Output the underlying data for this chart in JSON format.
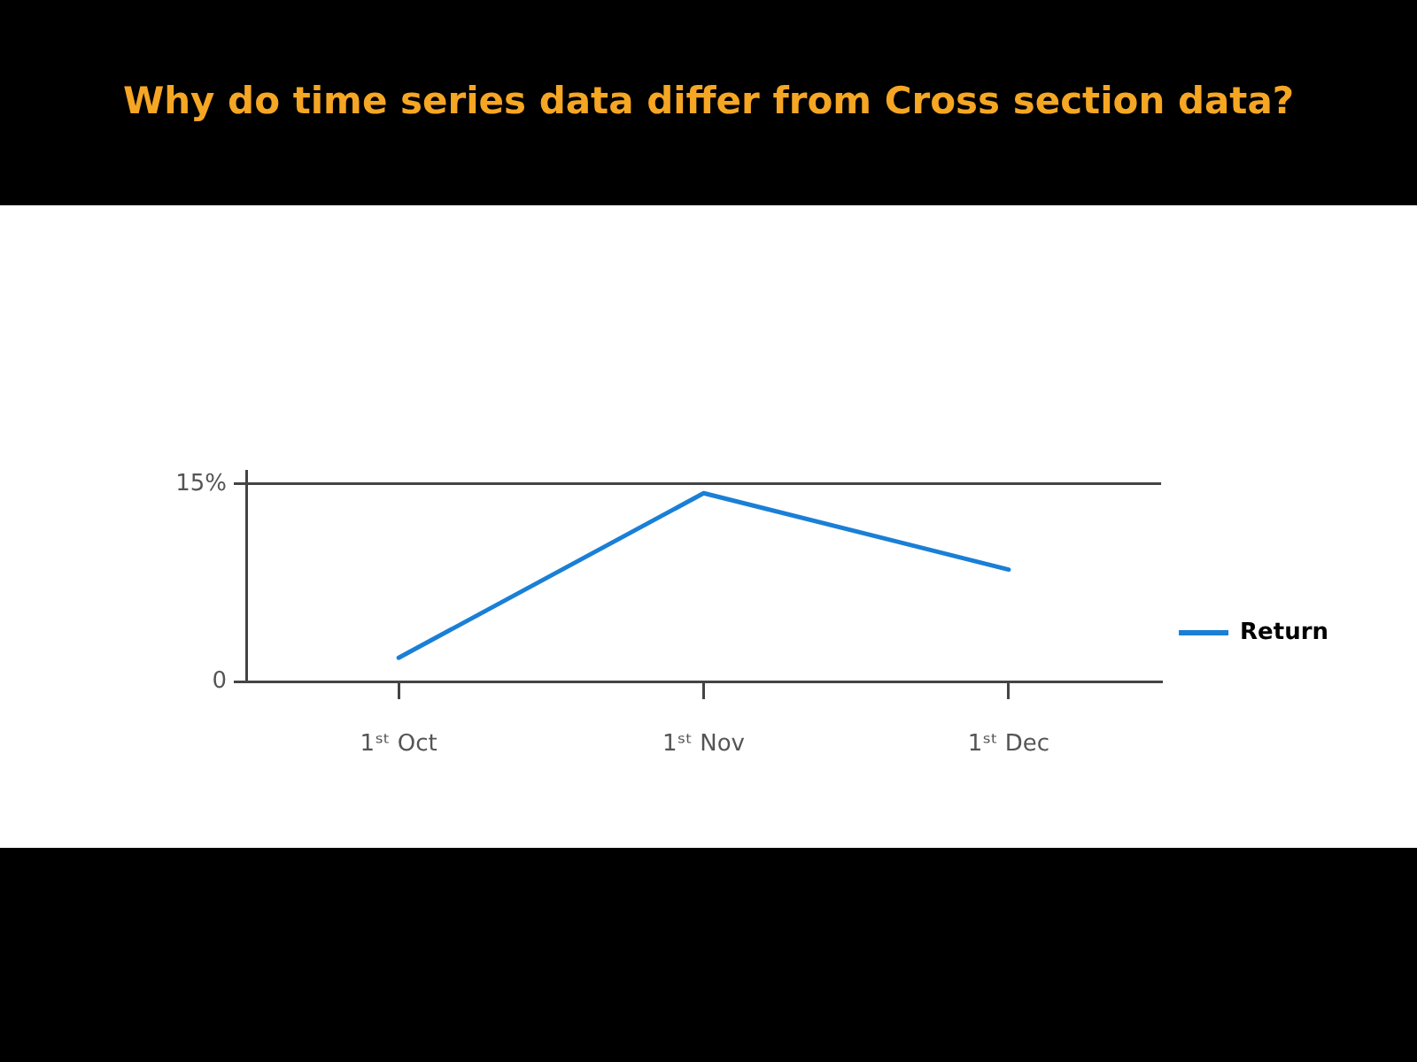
{
  "chart_data": {
    "type": "line",
    "title": "Why do time series data differ from Cross section data?",
    "categories": [
      "1ˢᵗ Oct",
      "1ˢᵗ Nov",
      "1ˢᵗ Dec"
    ],
    "series": [
      {
        "name": "Return",
        "color": "#1a7fd6",
        "values": [
          1.8,
          14.3,
          8.5
        ]
      }
    ],
    "ylim": [
      0,
      16
    ],
    "yticks": [
      0,
      {
        "value": 15,
        "label": "15%"
      }
    ],
    "grid": "y",
    "legend": "right",
    "marker": "none",
    "line_style": "solid"
  }
}
